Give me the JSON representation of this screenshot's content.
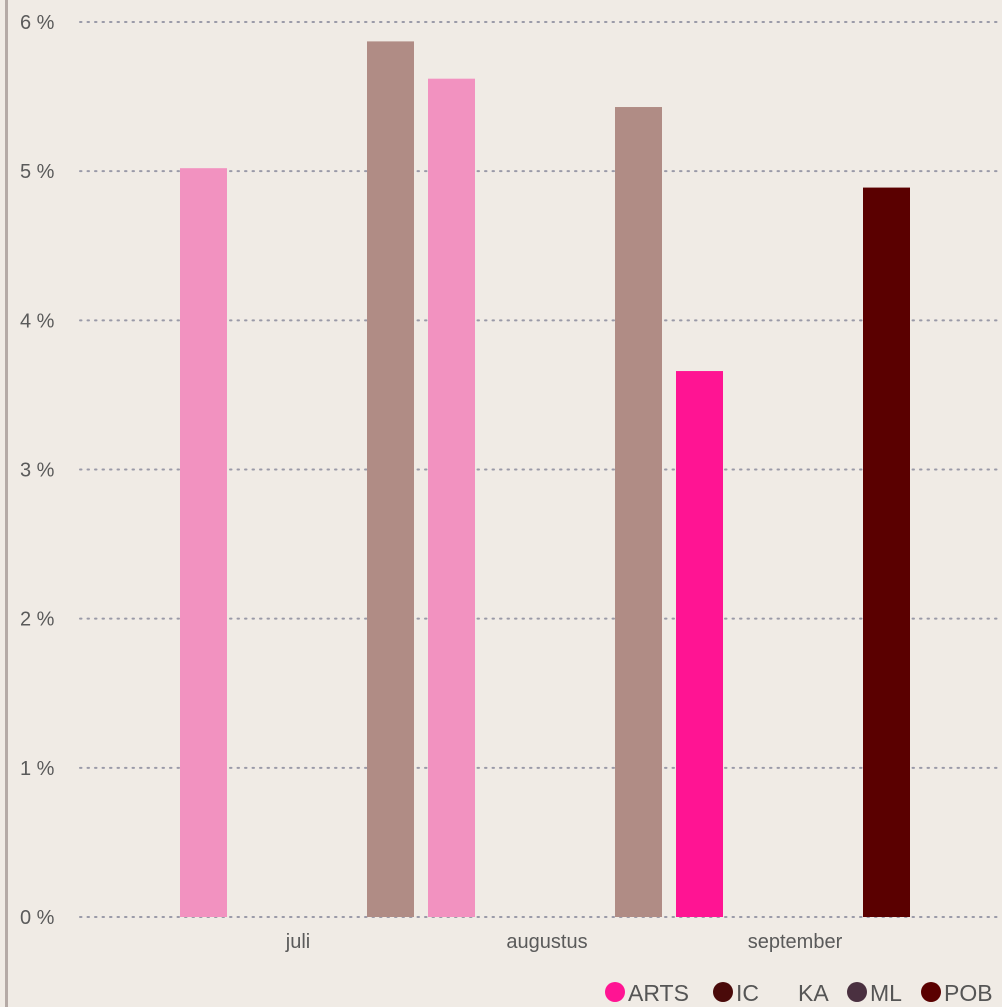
{
  "chart_data": {
    "type": "bar",
    "categories": [
      "juli",
      "augustus",
      "september"
    ],
    "ylim": [
      0,
      6
    ],
    "yticks": [
      0,
      1,
      2,
      3,
      4,
      5,
      6
    ],
    "ytick_labels": [
      "0 %",
      "1 %",
      "2 %",
      "3 %",
      "4 %",
      "5 %",
      "6 %"
    ],
    "grid": true,
    "legend_position": "bottom-right",
    "series": [
      {
        "name": "ARTS",
        "color": "#ff1493",
        "light_color": "#f292c0",
        "values": [
          5.02,
          5.62,
          3.66
        ]
      },
      {
        "name": "IC",
        "color": "#4a0a0a",
        "light_color": "#4a0a0a",
        "values": [
          null,
          null,
          null
        ]
      },
      {
        "name": "KA",
        "color": "#b08c85",
        "light_color": "#b08c85",
        "values": [
          5.87,
          5.43,
          null
        ]
      },
      {
        "name": "ML",
        "color": "#4a3040",
        "light_color": "#4a3040",
        "values": [
          null,
          null,
          null
        ]
      },
      {
        "name": "POB",
        "color": "#5a0000",
        "light_color": "#5a0000",
        "values": [
          null,
          null,
          4.89
        ]
      }
    ],
    "legend": [
      {
        "name": "ARTS",
        "color": "#ff1493",
        "show_marker": true
      },
      {
        "name": "IC",
        "color": "#4a0a0a",
        "show_marker": true
      },
      {
        "name": "KA",
        "color": "#b08c85",
        "show_marker": false
      },
      {
        "name": "ML",
        "color": "#4a3040",
        "show_marker": true
      },
      {
        "name": "POB",
        "color": "#5a0000",
        "show_marker": true
      }
    ]
  }
}
